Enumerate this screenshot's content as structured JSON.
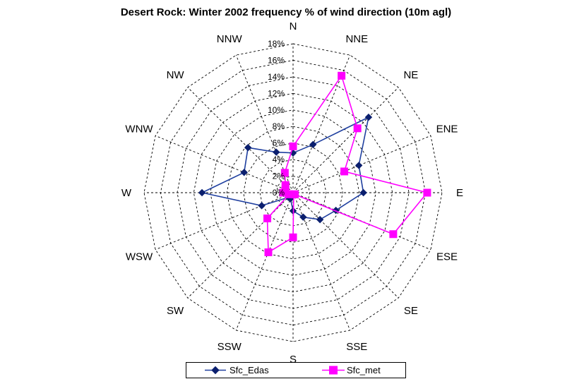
{
  "chart_data": {
    "type": "radar",
    "title": "Desert Rock: Winter 2002 frequency % of wind direction (10m agl)",
    "categories": [
      "N",
      "NNE",
      "NE",
      "ENE",
      "E",
      "ESE",
      "SE",
      "SSE",
      "S",
      "SSW",
      "SW",
      "WSW",
      "W",
      "WNW",
      "NW",
      "NNW"
    ],
    "radial_ticks": [
      "0%",
      "2%",
      "4%",
      "6%",
      "8%",
      "10%",
      "12%",
      "14%",
      "16%",
      "18%"
    ],
    "rlim": [
      0,
      18
    ],
    "grid": true,
    "legend_position": "bottom",
    "series": [
      {
        "name": "Sfc_Edas",
        "color": "#1f3f9f",
        "marker": "diamond",
        "values": [
          4.8,
          6.3,
          12.9,
          8.6,
          8.5,
          5.6,
          4.6,
          3.2,
          2.2,
          0.8,
          0.8,
          4.1,
          11.0,
          6.4,
          7.7,
          5.3
        ]
      },
      {
        "name": "Sfc_met",
        "color": "#ff00ff",
        "marker": "square",
        "values": [
          5.6,
          15.3,
          11.0,
          6.7,
          16.2,
          13.1,
          0.3,
          0.2,
          5.4,
          7.8,
          4.4,
          0.5,
          1.2,
          1.0,
          1.3,
          2.6
        ]
      }
    ]
  }
}
